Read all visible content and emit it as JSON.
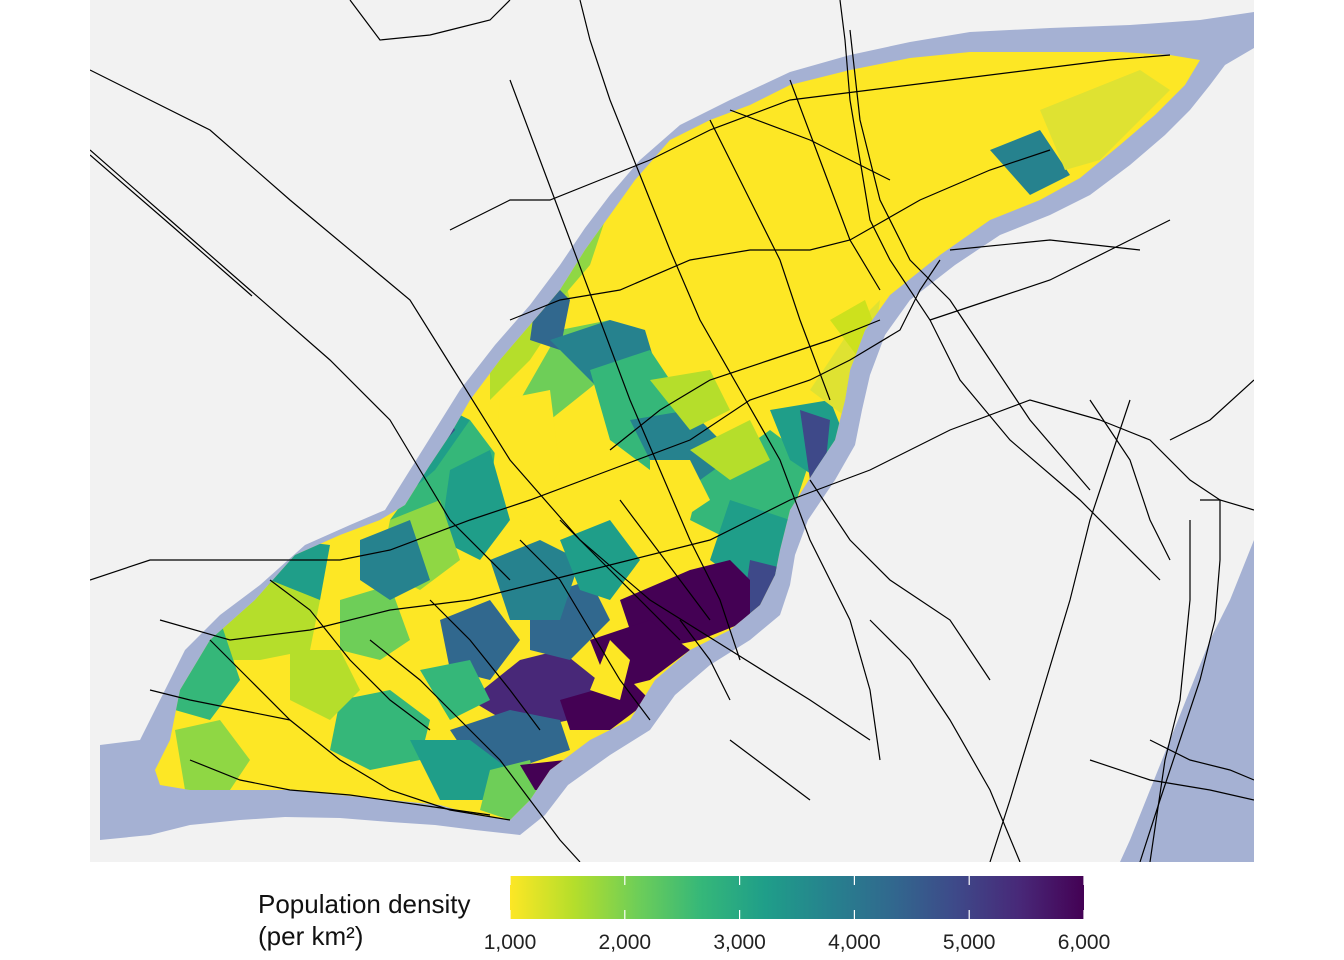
{
  "map": {
    "background_color": "#f2f2f2",
    "water_color": "#a5b1d3",
    "road_color": "#000000",
    "palette": "viridis (reversed)"
  },
  "legend": {
    "title_line1": "Population density",
    "title_line2": "(per km²)",
    "min": 1000,
    "max": 6000,
    "ticks": [
      "1,000",
      "2,000",
      "3,000",
      "4,000",
      "5,000",
      "6,000"
    ],
    "colors": [
      "#fde725",
      "#b5de2b",
      "#6ece58",
      "#35b779",
      "#1f9e89",
      "#26828e",
      "#31688e",
      "#3e4989",
      "#482878",
      "#440154"
    ]
  }
}
